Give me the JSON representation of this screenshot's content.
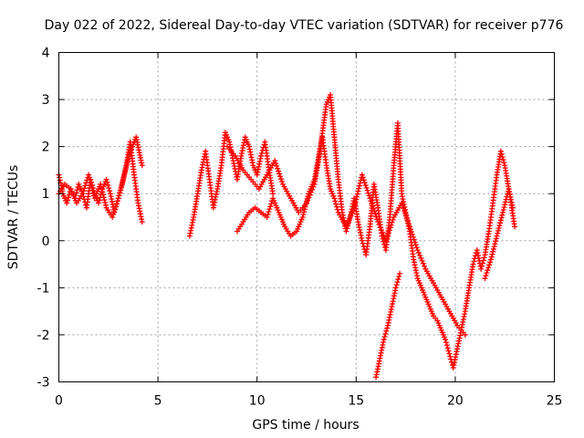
{
  "chart_data": {
    "type": "scatter",
    "title": "Day 022 of 2022, Sidereal Day-to-day VTEC variation (SDTVAR) for receiver p776",
    "xlabel": "GPS time / hours",
    "ylabel": "SDTVAR / TECUs",
    "xlim": [
      0,
      25
    ],
    "ylim": [
      -3,
      4
    ],
    "xticks": [
      "0",
      "5",
      "10",
      "15",
      "20",
      "25"
    ],
    "yticks": [
      "-3",
      "-2",
      "-1",
      "0",
      "1",
      "2",
      "3",
      "4"
    ],
    "grid": true,
    "marker": "plus",
    "color": "#ff0000",
    "series": [
      {
        "name": "SDTVAR",
        "x": [
          0.0,
          0.2,
          0.4,
          0.6,
          0.8,
          1.0,
          1.2,
          1.4,
          1.6,
          1.8,
          2.0,
          2.2,
          2.4,
          2.6,
          2.8,
          3.0,
          3.2,
          3.4,
          3.6,
          3.8,
          4.0,
          4.2,
          0.0,
          0.3,
          0.6,
          0.9,
          1.2,
          1.5,
          1.8,
          2.1,
          2.4,
          2.7,
          3.0,
          3.3,
          3.6,
          3.9,
          4.2,
          6.6,
          6.8,
          7.0,
          7.2,
          7.4,
          7.6,
          7.8,
          8.0,
          8.2,
          8.4,
          8.6,
          8.8,
          9.0,
          9.2,
          9.4,
          9.6,
          9.8,
          10.0,
          10.2,
          10.4,
          10.6,
          10.8,
          9.0,
          9.3,
          9.6,
          9.9,
          10.2,
          10.5,
          10.8,
          11.1,
          11.4,
          11.7,
          12.0,
          12.3,
          12.6,
          12.9,
          13.2,
          13.5,
          13.7,
          13.9,
          14.1,
          14.3,
          14.5,
          14.7,
          14.9,
          15.1,
          15.3,
          15.5,
          15.7,
          15.9,
          16.1,
          16.3,
          16.5,
          16.7,
          16.9,
          17.1,
          17.3,
          17.5,
          17.7,
          17.9,
          18.1,
          18.3,
          18.5,
          18.7,
          18.9,
          19.1,
          19.3,
          19.5,
          19.7,
          19.9,
          20.1,
          20.3,
          20.5,
          20.7,
          20.9,
          21.1,
          21.3,
          21.5,
          21.7,
          21.9,
          22.1,
          22.3,
          22.5,
          22.7,
          22.9,
          8.5,
          8.9,
          9.3,
          9.7,
          10.1,
          10.5,
          10.9,
          11.3,
          11.7,
          12.1,
          12.5,
          12.9,
          13.3,
          13.5,
          13.7,
          13.9,
          14.1,
          14.5,
          14.9,
          15.3,
          15.7,
          16.1,
          16.5,
          16.9,
          17.3,
          17.7,
          18.1,
          18.5,
          18.9,
          19.3,
          19.7,
          20.1,
          20.5,
          16.0,
          16.2,
          16.4,
          16.6,
          16.8,
          17.0,
          17.2,
          21.5,
          21.8,
          22.1,
          22.4,
          22.7,
          23.0
        ],
        "y": [
          1.4,
          1.0,
          0.8,
          1.1,
          0.9,
          1.2,
          1.0,
          0.7,
          1.3,
          1.0,
          0.8,
          1.1,
          1.3,
          1.0,
          0.6,
          0.9,
          1.2,
          1.6,
          2.1,
          1.4,
          0.8,
          0.4,
          1.0,
          1.2,
          1.1,
          0.8,
          1.0,
          1.4,
          0.9,
          1.2,
          0.7,
          0.5,
          0.9,
          1.4,
          1.9,
          2.2,
          1.6,
          0.1,
          0.5,
          1.0,
          1.5,
          1.9,
          1.3,
          0.7,
          1.1,
          1.6,
          2.3,
          2.1,
          1.7,
          1.3,
          1.8,
          2.2,
          2.0,
          1.6,
          1.4,
          1.8,
          2.1,
          1.5,
          1.0,
          0.2,
          0.4,
          0.6,
          0.7,
          0.6,
          0.5,
          0.9,
          0.6,
          0.3,
          0.1,
          0.2,
          0.5,
          1.0,
          1.3,
          2.0,
          2.9,
          3.1,
          2.2,
          1.3,
          0.6,
          0.2,
          0.5,
          0.9,
          0.4,
          0.0,
          -0.3,
          0.3,
          1.2,
          0.7,
          0.1,
          -0.2,
          0.5,
          1.6,
          2.5,
          1.0,
          0.6,
          0.2,
          -0.4,
          -0.8,
          -1.0,
          -1.2,
          -1.4,
          -1.6,
          -1.7,
          -1.9,
          -2.1,
          -2.4,
          -2.7,
          -2.3,
          -1.9,
          -1.5,
          -1.0,
          -0.5,
          -0.2,
          -0.6,
          -0.3,
          0.2,
          0.8,
          1.4,
          1.9,
          1.6,
          1.1,
          0.7,
          2.0,
          1.8,
          1.5,
          1.3,
          1.1,
          1.4,
          1.7,
          1.2,
          0.9,
          0.6,
          0.8,
          1.2,
          2.2,
          1.6,
          1.1,
          0.9,
          0.6,
          0.3,
          0.7,
          1.4,
          0.9,
          0.4,
          0.0,
          0.5,
          0.8,
          0.3,
          -0.2,
          -0.6,
          -0.9,
          -1.2,
          -1.5,
          -1.8,
          -2.0,
          -2.9,
          -2.5,
          -2.1,
          -1.8,
          -1.4,
          -1.0,
          -0.7,
          -0.8,
          -0.4,
          0.1,
          0.6,
          1.1,
          0.3
        ]
      }
    ]
  }
}
